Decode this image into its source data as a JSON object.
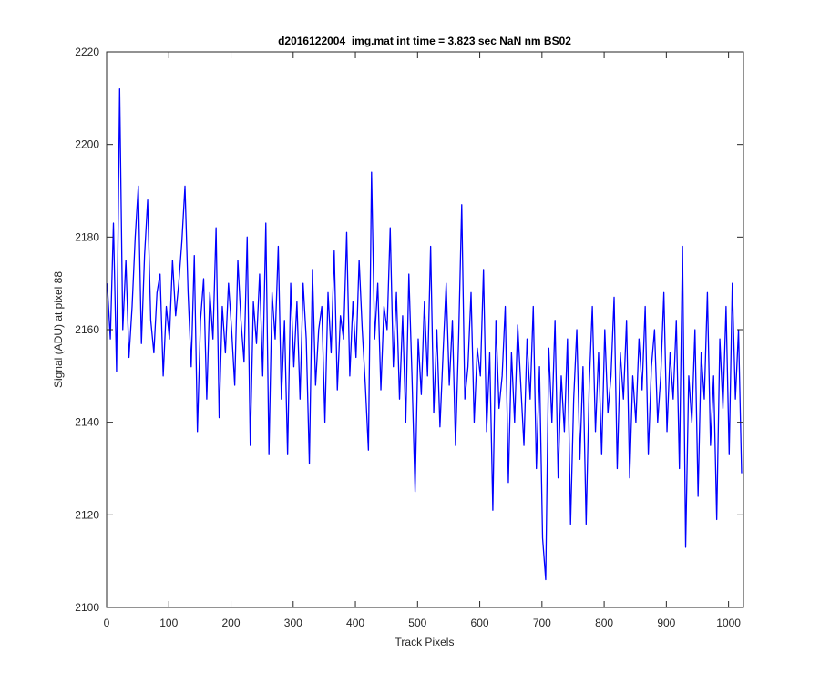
{
  "chart_data": {
    "type": "line",
    "title": "d2016122004_img.mat int time = 3.823 sec  NaN nm BS02",
    "xlabel": "Track Pixels",
    "ylabel": "Signal (ADU) at pixel 88",
    "color": "#0000ff",
    "xlim": [
      0,
      1024
    ],
    "ylim": [
      2100,
      2220
    ],
    "xticks": [
      0,
      100,
      200,
      300,
      400,
      500,
      600,
      700,
      800,
      900,
      1000
    ],
    "yticks": [
      2100,
      2120,
      2140,
      2160,
      2180,
      2200,
      2220
    ],
    "x": [
      1,
      6,
      11,
      16,
      21,
      26,
      31,
      36,
      41,
      46,
      51,
      56,
      61,
      66,
      71,
      76,
      81,
      86,
      91,
      96,
      101,
      106,
      111,
      116,
      121,
      126,
      131,
      136,
      141,
      146,
      151,
      156,
      161,
      166,
      171,
      176,
      181,
      186,
      191,
      196,
      201,
      206,
      211,
      216,
      221,
      226,
      231,
      236,
      241,
      246,
      251,
      256,
      261,
      266,
      271,
      276,
      281,
      286,
      291,
      296,
      301,
      306,
      311,
      316,
      321,
      326,
      331,
      336,
      341,
      346,
      351,
      356,
      361,
      366,
      371,
      376,
      381,
      386,
      391,
      396,
      401,
      406,
      411,
      416,
      421,
      426,
      431,
      436,
      441,
      446,
      451,
      456,
      461,
      466,
      471,
      476,
      481,
      486,
      491,
      496,
      501,
      506,
      511,
      516,
      521,
      526,
      531,
      536,
      541,
      546,
      551,
      556,
      561,
      566,
      571,
      576,
      581,
      586,
      591,
      596,
      601,
      606,
      611,
      616,
      621,
      626,
      631,
      636,
      641,
      646,
      651,
      656,
      661,
      666,
      671,
      676,
      681,
      686,
      691,
      696,
      701,
      706,
      711,
      716,
      721,
      726,
      731,
      736,
      741,
      746,
      751,
      756,
      761,
      766,
      771,
      776,
      781,
      786,
      791,
      796,
      801,
      806,
      811,
      816,
      821,
      826,
      831,
      836,
      841,
      846,
      851,
      856,
      861,
      866,
      871,
      876,
      881,
      886,
      891,
      896,
      901,
      906,
      911,
      916,
      921,
      926,
      931,
      936,
      941,
      946,
      951,
      956,
      961,
      966,
      971,
      976,
      981,
      986,
      991,
      996,
      1001,
      1006,
      1011,
      1016,
      1021
    ],
    "values": [
      2170,
      2158,
      2183,
      2151,
      2212,
      2160,
      2175,
      2154,
      2165,
      2180,
      2191,
      2157,
      2176,
      2188,
      2162,
      2155,
      2168,
      2172,
      2150,
      2165,
      2158,
      2175,
      2163,
      2170,
      2179,
      2191,
      2168,
      2152,
      2176,
      2138,
      2162,
      2171,
      2145,
      2168,
      2158,
      2182,
      2141,
      2165,
      2155,
      2170,
      2160,
      2148,
      2175,
      2162,
      2153,
      2180,
      2135,
      2166,
      2157,
      2172,
      2150,
      2183,
      2133,
      2168,
      2158,
      2178,
      2145,
      2162,
      2133,
      2170,
      2152,
      2166,
      2145,
      2170,
      2158,
      2131,
      2173,
      2148,
      2160,
      2165,
      2140,
      2168,
      2155,
      2177,
      2147,
      2163,
      2158,
      2181,
      2150,
      2166,
      2154,
      2175,
      2160,
      2148,
      2134,
      2194,
      2158,
      2170,
      2147,
      2165,
      2160,
      2182,
      2152,
      2168,
      2145,
      2163,
      2140,
      2172,
      2150,
      2125,
      2158,
      2146,
      2166,
      2150,
      2178,
      2142,
      2160,
      2139,
      2155,
      2170,
      2148,
      2162,
      2135,
      2158,
      2187,
      2145,
      2152,
      2168,
      2140,
      2156,
      2150,
      2173,
      2138,
      2155,
      2121,
      2162,
      2143,
      2150,
      2165,
      2127,
      2155,
      2140,
      2161,
      2148,
      2135,
      2158,
      2145,
      2165,
      2130,
      2152,
      2115,
      2106,
      2156,
      2140,
      2162,
      2128,
      2150,
      2138,
      2158,
      2118,
      2145,
      2160,
      2132,
      2152,
      2118,
      2148,
      2165,
      2138,
      2155,
      2133,
      2160,
      2142,
      2150,
      2167,
      2130,
      2155,
      2145,
      2162,
      2128,
      2150,
      2140,
      2158,
      2147,
      2165,
      2133,
      2152,
      2160,
      2140,
      2150,
      2168,
      2138,
      2155,
      2145,
      2162,
      2130,
      2178,
      2113,
      2150,
      2140,
      2160,
      2124,
      2155,
      2145,
      2168,
      2135,
      2150,
      2119,
      2158,
      2143,
      2165,
      2133,
      2170,
      2145,
      2160,
      2129
    ]
  }
}
